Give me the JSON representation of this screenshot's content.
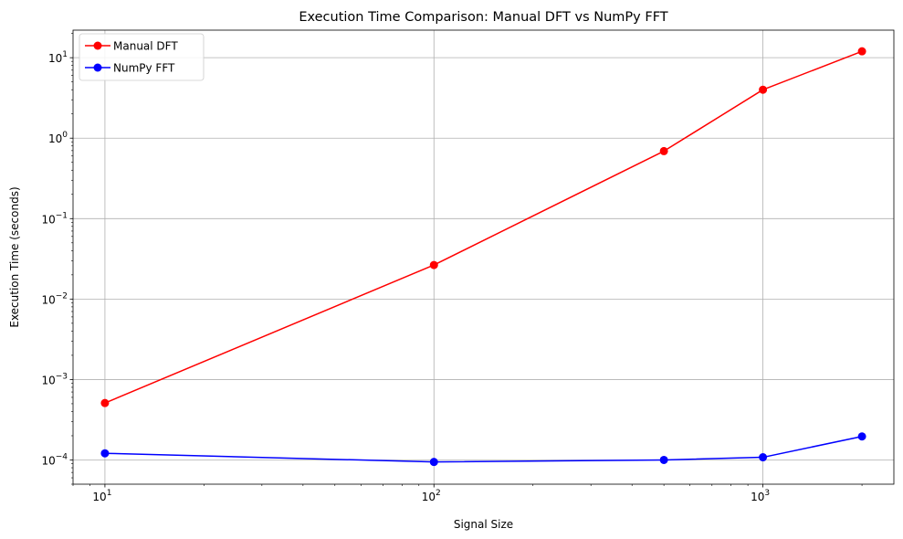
{
  "chart_data": {
    "type": "line",
    "title": "Execution Time Comparison: Manual DFT vs NumPy FFT",
    "xlabel": "Signal Size",
    "ylabel": "Execution Time (seconds)",
    "xscale": "log",
    "yscale": "log",
    "xlim": [
      8,
      2500
    ],
    "ylim": [
      5e-05,
      22
    ],
    "grid": true,
    "legend_position": "top-left",
    "x": [
      10,
      100,
      500,
      1000,
      2000
    ],
    "series": [
      {
        "name": "Manual DFT",
        "color": "#ff0000",
        "marker": "circle",
        "values": [
          0.00051,
          0.0265,
          0.69,
          4.0,
          12.0
        ]
      },
      {
        "name": "NumPy FFT",
        "color": "#0000ff",
        "marker": "circle",
        "values": [
          0.000121,
          9.45e-05,
          0.0001,
          0.000108,
          0.000196
        ]
      }
    ],
    "x_ticks": [
      {
        "value": 10,
        "base": "10",
        "exp": "1"
      },
      {
        "value": 100,
        "base": "10",
        "exp": "2"
      },
      {
        "value": 1000,
        "base": "10",
        "exp": "3"
      }
    ],
    "y_ticks": [
      {
        "value": 0.0001,
        "base": "10",
        "exp": "−4"
      },
      {
        "value": 0.001,
        "base": "10",
        "exp": "−3"
      },
      {
        "value": 0.01,
        "base": "10",
        "exp": "−2"
      },
      {
        "value": 0.1,
        "base": "10",
        "exp": "−1"
      },
      {
        "value": 1,
        "base": "10",
        "exp": "0"
      },
      {
        "value": 10,
        "base": "10",
        "exp": "1"
      }
    ]
  }
}
